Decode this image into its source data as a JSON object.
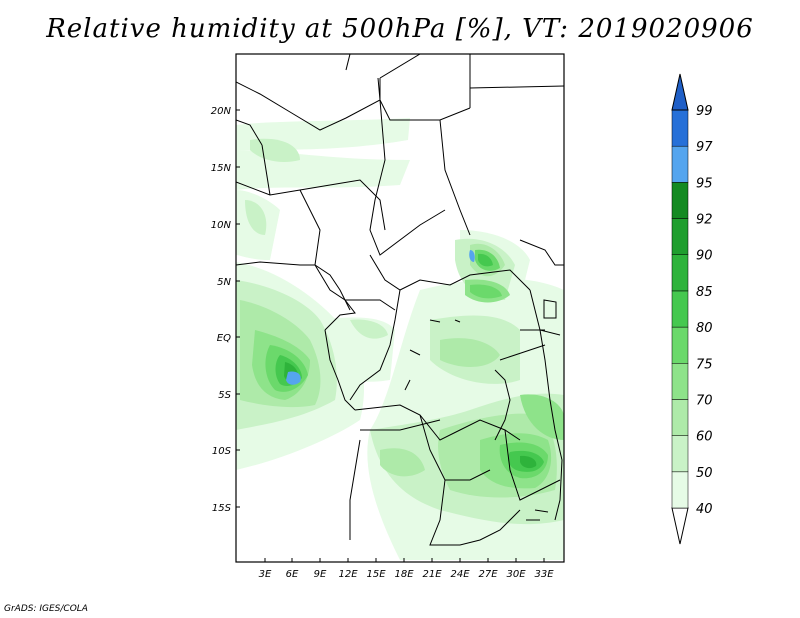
{
  "title": "Relative humidity at 500hPa [%], VT: 2019020906",
  "credit": "GrADS: IGES/COLA",
  "map": {
    "lat_labels": [
      "20N",
      "15N",
      "10N",
      "5N",
      "EQ",
      "5S",
      "10S",
      "15S"
    ],
    "lon_labels": [
      "3E",
      "6E",
      "9E",
      "12E",
      "15E",
      "18E",
      "21E",
      "24E",
      "27E",
      "30E",
      "33E"
    ]
  },
  "colorbar": {
    "levels": [
      "40",
      "50",
      "60",
      "70",
      "75",
      "80",
      "85",
      "90",
      "92",
      "95",
      "97",
      "99"
    ],
    "colors": [
      "#ffffff",
      "#e6fbe6",
      "#c9f2c7",
      "#aeeaa9",
      "#8ee38a",
      "#6bd96b",
      "#45c84f",
      "#2eb33b",
      "#1f9e2e",
      "#138a21",
      "#55a5ee",
      "#2670d8",
      "#1f5fc7"
    ]
  }
}
